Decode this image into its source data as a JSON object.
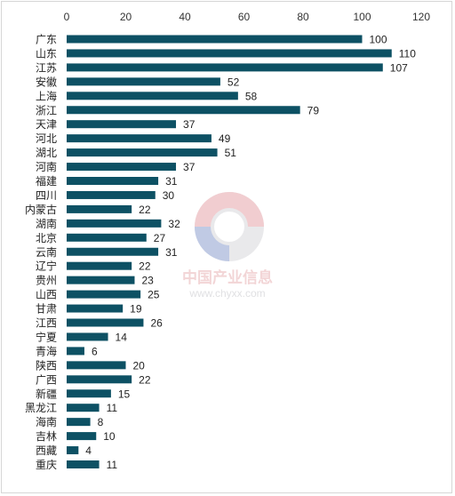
{
  "chart_data": {
    "type": "bar",
    "orientation": "horizontal",
    "categories": [
      "广东",
      "山东",
      "江苏",
      "安徽",
      "上海",
      "浙江",
      "天津",
      "河北",
      "湖北",
      "河南",
      "福建",
      "四川",
      "内蒙古",
      "湖南",
      "北京",
      "云南",
      "辽宁",
      "贵州",
      "山西",
      "甘肃",
      "江西",
      "宁夏",
      "青海",
      "陕西",
      "广西",
      "新疆",
      "黑龙江",
      "海南",
      "吉林",
      "西藏",
      "重庆"
    ],
    "values": [
      100,
      110,
      107,
      52,
      58,
      79,
      37,
      49,
      51,
      37,
      31,
      30,
      22,
      32,
      27,
      31,
      22,
      23,
      25,
      19,
      26,
      14,
      6,
      20,
      22,
      15,
      11,
      8,
      10,
      4,
      11
    ],
    "xlim": [
      0,
      120
    ],
    "xticks": [
      0,
      20,
      40,
      60,
      80,
      100,
      120
    ],
    "x_axis_position": "top",
    "grid": false,
    "legend": "none",
    "bar_color": "#0d5164"
  },
  "watermark": {
    "brand": "中国产业信息",
    "url": "www.chyxx.com"
  }
}
